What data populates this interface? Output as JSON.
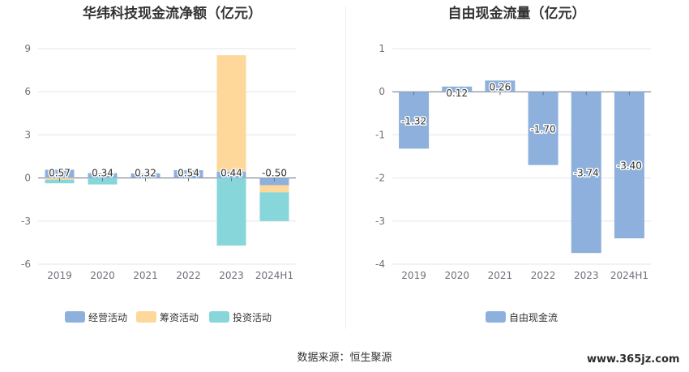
{
  "charts_meta": {
    "source_label": "数据来源：恒生聚源",
    "watermark": "www.365jz.com",
    "colors": {
      "operating": "#8eb0dc",
      "financing": "#fdd89a",
      "investing": "#86d6da",
      "fcf": "#8eb0dc"
    }
  },
  "chart_data": [
    {
      "type": "bar",
      "stacked": true,
      "title": "华纬科技现金流净额（亿元）",
      "categories": [
        "2019",
        "2020",
        "2021",
        "2022",
        "2023",
        "2024H1"
      ],
      "ylim": [
        -6,
        9
      ],
      "yticks": [
        "9",
        "6",
        "3",
        "0",
        "-3",
        "-6"
      ],
      "grid": true,
      "legend_position": "bottom",
      "series": [
        {
          "name": "经营活动",
          "values": [
            0.57,
            0.34,
            0.32,
            0.54,
            0.44,
            -0.5
          ],
          "color": "#8eb0dc"
        },
        {
          "name": "筹资活动",
          "values": [
            -0.12,
            0.0,
            0.0,
            0.0,
            8.1,
            -0.5
          ],
          "color": "#fdd89a"
        },
        {
          "name": "投资活动",
          "values": [
            -0.25,
            -0.45,
            0.0,
            0.0,
            -4.7,
            -2.0
          ],
          "color": "#86d6da"
        }
      ],
      "data_labels": [
        "0.57",
        "0.34",
        "0.32",
        "0.54",
        "0.44",
        "-0.50"
      ]
    },
    {
      "type": "bar",
      "title": "自由现金流量（亿元）",
      "categories": [
        "2019",
        "2020",
        "2021",
        "2022",
        "2023",
        "2024H1"
      ],
      "ylim": [
        -4,
        1
      ],
      "yticks": [
        "1",
        "0",
        "-1",
        "-2",
        "-3",
        "-4"
      ],
      "grid": true,
      "legend_position": "bottom",
      "series": [
        {
          "name": "自由现金流",
          "values": [
            -1.32,
            0.12,
            0.26,
            -1.7,
            -3.74,
            -3.4
          ],
          "color": "#8eb0dc"
        }
      ],
      "data_labels": [
        "-1.32",
        "0.12",
        "0.26",
        "-1.70",
        "-3.74",
        "-3.40"
      ]
    }
  ]
}
